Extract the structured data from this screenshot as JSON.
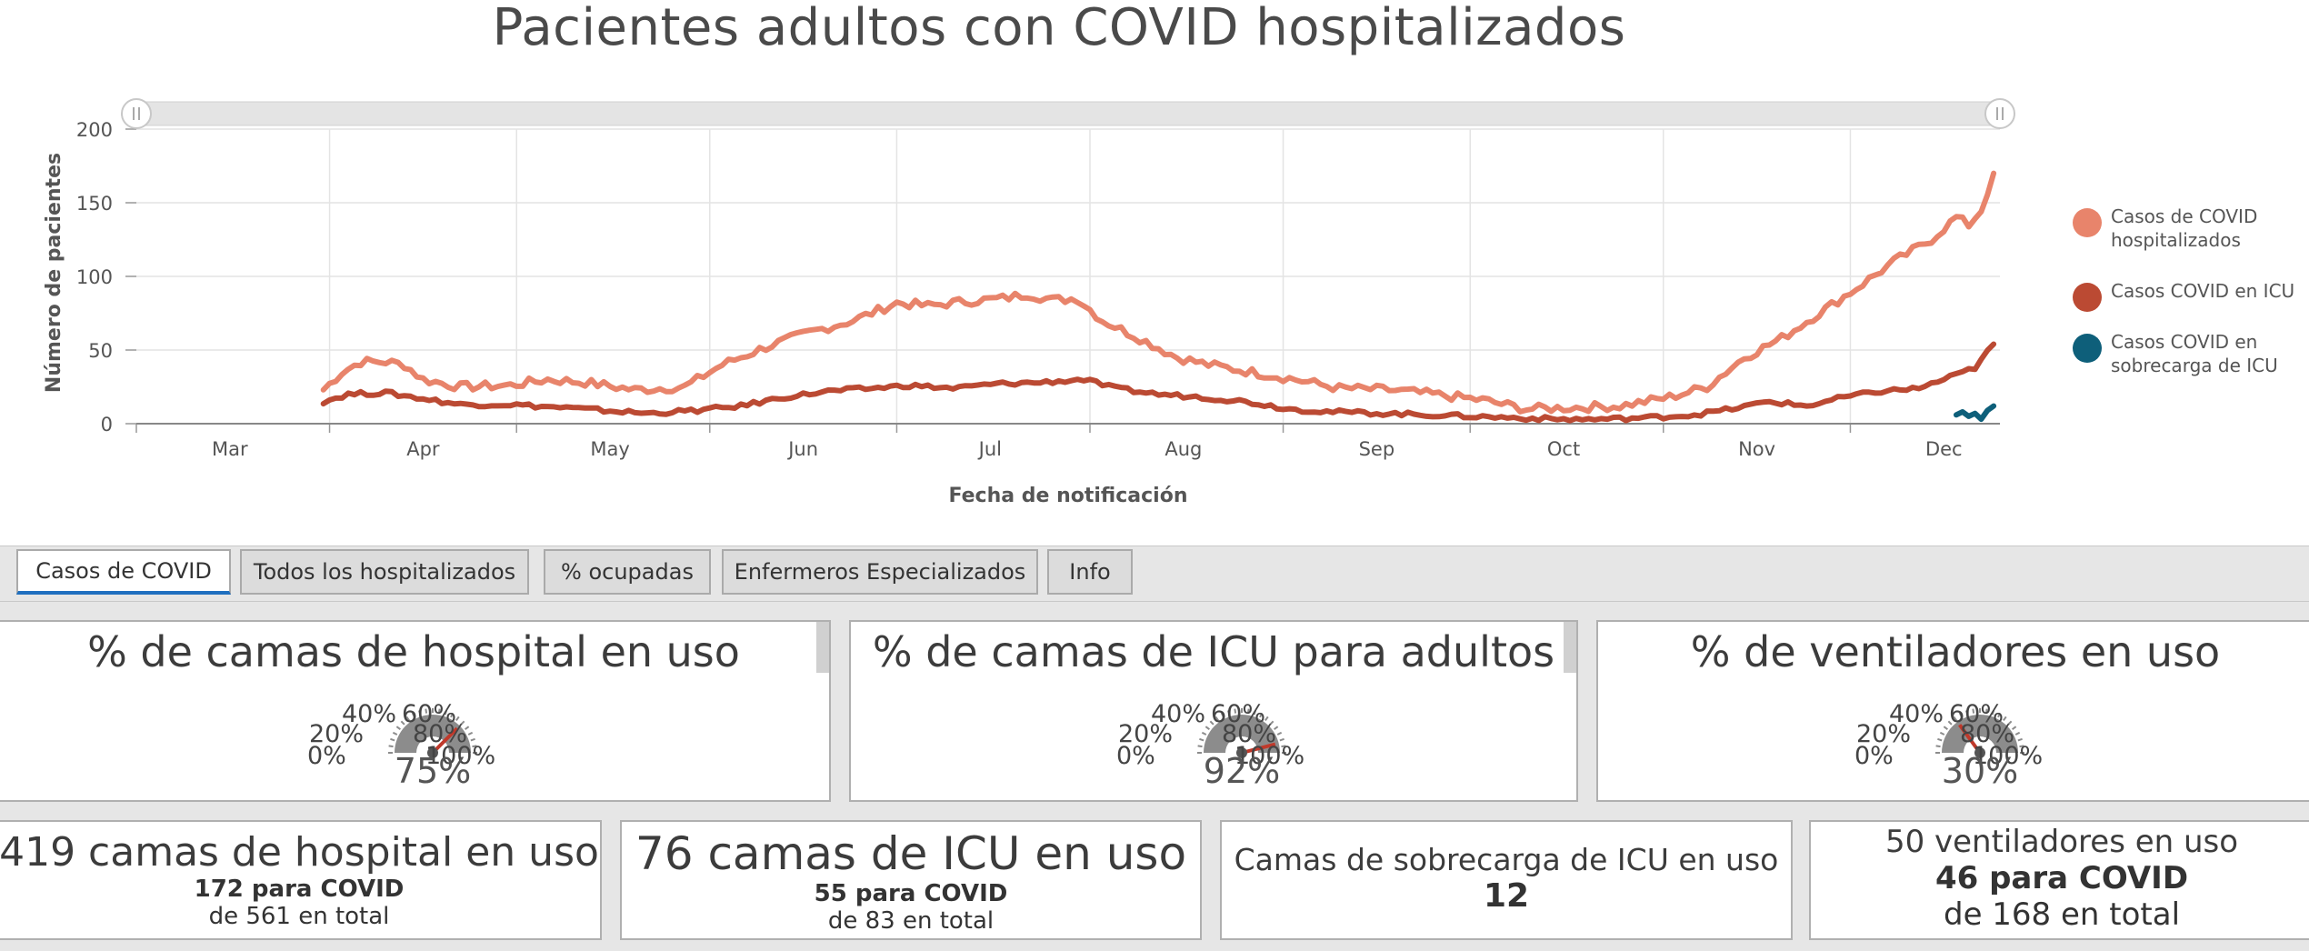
{
  "title": "Pacientes adultos con COVID hospitalizados",
  "chart_data": {
    "type": "line",
    "title": "Pacientes adultos con COVID hospitalizados",
    "xlabel": "Fecha de notificación",
    "ylabel": "Número de pacientes",
    "ylim": [
      0,
      200
    ],
    "yticks": [
      "0",
      "50",
      "100",
      "150",
      "200"
    ],
    "xticks": [
      "Mar",
      "Apr",
      "May",
      "Jun",
      "Jul",
      "Aug",
      "Sep",
      "Oct",
      "Nov",
      "Dec"
    ],
    "grid": true,
    "legend_position": "right",
    "series": [
      {
        "name": "Casos de COVID hospitalizados",
        "color": "#e8846b",
        "points": [
          [
            "Mar 31",
            23
          ],
          [
            "Apr 3",
            35
          ],
          [
            "Apr 6",
            42
          ],
          [
            "Apr 10",
            42
          ],
          [
            "Apr 13",
            40
          ],
          [
            "Apr 16",
            30
          ],
          [
            "Apr 22",
            25
          ],
          [
            "Apr 30",
            26
          ],
          [
            "May 6",
            30
          ],
          [
            "May 12",
            28
          ],
          [
            "May 20",
            23
          ],
          [
            "May 28",
            25
          ],
          [
            "Jun 3",
            40
          ],
          [
            "Jun 10",
            52
          ],
          [
            "Jun 17",
            62
          ],
          [
            "Jun 24",
            70
          ],
          [
            "Jul 1",
            82
          ],
          [
            "Jul 6",
            80
          ],
          [
            "Jul 12",
            83
          ],
          [
            "Jul 18",
            85
          ],
          [
            "Jul 22",
            88
          ],
          [
            "Jul 26",
            84
          ],
          [
            "Jul 30",
            85
          ],
          [
            "Aug 3",
            70
          ],
          [
            "Aug 8",
            60
          ],
          [
            "Aug 15",
            45
          ],
          [
            "Aug 20",
            40
          ],
          [
            "Aug 27",
            35
          ],
          [
            "Sep 3",
            30
          ],
          [
            "Sep 10",
            24
          ],
          [
            "Sep 18",
            23
          ],
          [
            "Sep 25",
            20
          ],
          [
            "Oct 3",
            16
          ],
          [
            "Oct 10",
            10
          ],
          [
            "Oct 18",
            11
          ],
          [
            "Oct 25",
            12
          ],
          [
            "Nov 2",
            18
          ],
          [
            "Nov 8",
            25
          ],
          [
            "Nov 14",
            45
          ],
          [
            "Nov 20",
            58
          ],
          [
            "Nov 26",
            75
          ],
          [
            "Dec 2",
            92
          ],
          [
            "Dec 8",
            110
          ],
          [
            "Dec 14",
            125
          ],
          [
            "Dec 18",
            140
          ],
          [
            "Dec 20",
            135
          ],
          [
            "Dec 22",
            145
          ],
          [
            "Dec 24",
            170
          ]
        ]
      },
      {
        "name": "Casos COVID en ICU",
        "color": "#bb4a33",
        "points": [
          [
            "Mar 31",
            15
          ],
          [
            "Apr 4",
            20
          ],
          [
            "Apr 10",
            21
          ],
          [
            "Apr 16",
            17
          ],
          [
            "Apr 22",
            13
          ],
          [
            "Apr 30",
            13
          ],
          [
            "May 8",
            11
          ],
          [
            "May 15",
            9
          ],
          [
            "May 22",
            7
          ],
          [
            "May 30",
            9
          ],
          [
            "Jun 6",
            12
          ],
          [
            "Jun 13",
            18
          ],
          [
            "Jun 20",
            22
          ],
          [
            "Jun 27",
            24
          ],
          [
            "Jul 3",
            26
          ],
          [
            "Jul 10",
            24
          ],
          [
            "Jul 17",
            27
          ],
          [
            "Jul 24",
            28
          ],
          [
            "Jul 31",
            30
          ],
          [
            "Aug 5",
            24
          ],
          [
            "Aug 12",
            20
          ],
          [
            "Aug 19",
            18
          ],
          [
            "Aug 26",
            15
          ],
          [
            "Sep 2",
            10
          ],
          [
            "Sep 9",
            8
          ],
          [
            "Sep 17",
            7
          ],
          [
            "Sep 24",
            6
          ],
          [
            "Oct 1",
            5
          ],
          [
            "Oct 8",
            4
          ],
          [
            "Oct 15",
            3
          ],
          [
            "Oct 22",
            3
          ],
          [
            "Oct 29",
            4
          ],
          [
            "Nov 6",
            6
          ],
          [
            "Nov 12",
            10
          ],
          [
            "Nov 18",
            15
          ],
          [
            "Nov 24",
            12
          ],
          [
            "Nov 30",
            18
          ],
          [
            "Dec 6",
            22
          ],
          [
            "Dec 12",
            24
          ],
          [
            "Dec 18",
            33
          ],
          [
            "Dec 21",
            38
          ],
          [
            "Dec 24",
            54
          ]
        ]
      },
      {
        "name": "Casos COVID en sobrecarga de ICU",
        "color": "#0e5f7a",
        "points": [
          [
            "Dec 18",
            6
          ],
          [
            "Dec 19",
            8
          ],
          [
            "Dec 20",
            5
          ],
          [
            "Dec 21",
            7
          ],
          [
            "Dec 22",
            3
          ],
          [
            "Dec 23",
            9
          ],
          [
            "Dec 24",
            12
          ]
        ]
      }
    ]
  },
  "legend": [
    {
      "label": "Casos de COVID hospitalizados",
      "color": "#e8846b"
    },
    {
      "label": "Casos COVID en ICU",
      "color": "#bb4a33"
    },
    {
      "label": "Casos COVID en sobrecarga de ICU",
      "color": "#0e5f7a"
    }
  ],
  "tabs": [
    {
      "label": "Casos de COVID",
      "active": true
    },
    {
      "label": "Todos los hospitalizados",
      "active": false
    },
    {
      "label": "% ocupadas",
      "active": false
    },
    {
      "label": "Enfermeros Especializados",
      "active": false
    },
    {
      "label": "Info",
      "active": false
    }
  ],
  "gauges": [
    {
      "title": "% de camas de hospital en uso",
      "value_label": "75%",
      "value": 75,
      "scale": [
        "0%",
        "20%",
        "40%",
        "60%",
        "80%",
        "100%"
      ]
    },
    {
      "title": "% de camas de ICU para adultos",
      "value_label": "92%",
      "value": 92,
      "scale": [
        "0%",
        "20%",
        "40%",
        "60%",
        "80%",
        "100%"
      ]
    },
    {
      "title": "% de ventiladores en uso",
      "value_label": "30%",
      "value": 30,
      "scale": [
        "0%",
        "20%",
        "40%",
        "60%",
        "80%",
        "100%"
      ]
    }
  ],
  "stats": [
    {
      "main": "419 camas de hospital en uso",
      "bold": "172 para COVID",
      "sub": "de 561 en total"
    },
    {
      "main": "76 camas de ICU en uso",
      "bold": "55 para COVID",
      "sub": "de 83 en total"
    },
    {
      "main": "Camas de sobrecarga de ICU en uso",
      "bold": "12",
      "sub": ""
    },
    {
      "main": "50 ventiladores en uso",
      "bold": "46 para COVID",
      "sub": "de 168 en total"
    }
  ]
}
